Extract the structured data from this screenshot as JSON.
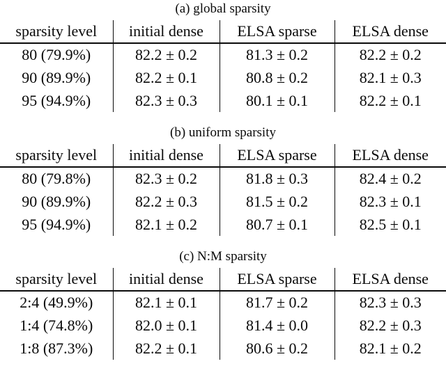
{
  "page": {
    "background_color": "#ffffff",
    "text_color": "#0a0a0a"
  },
  "tables": [
    {
      "caption": "(a) global sparsity",
      "headers": [
        "sparsity level",
        "initial dense",
        "ELSA sparse",
        "ELSA dense"
      ],
      "rows": [
        [
          "80 (79.9%)",
          "82.2 ± 0.2",
          "81.3 ± 0.2",
          "82.2 ± 0.2"
        ],
        [
          "90 (89.9%)",
          "82.2 ± 0.1",
          "80.8 ± 0.2",
          "82.1 ± 0.3"
        ],
        [
          "95 (94.9%)",
          "82.3 ± 0.3",
          "80.1 ± 0.1",
          "82.2 ± 0.1"
        ]
      ]
    },
    {
      "caption": "(b) uniform sparsity",
      "headers": [
        "sparsity level",
        "initial dense",
        "ELSA sparse",
        "ELSA dense"
      ],
      "rows": [
        [
          "80 (79.8%)",
          "82.3 ± 0.2",
          "81.8 ± 0.3",
          "82.4 ± 0.2"
        ],
        [
          "90 (89.9%)",
          "82.2 ± 0.3",
          "81.5 ± 0.2",
          "82.3 ± 0.1"
        ],
        [
          "95 (94.9%)",
          "82.1 ± 0.2",
          "80.7 ± 0.1",
          "82.5 ± 0.1"
        ]
      ]
    },
    {
      "caption": "(c) N:M sparsity",
      "headers": [
        "sparsity level",
        "initial dense",
        "ELSA sparse",
        "ELSA dense"
      ],
      "rows": [
        [
          "2:4 (49.9%)",
          "82.1 ± 0.1",
          "81.7 ± 0.2",
          "82.3 ± 0.3"
        ],
        [
          "1:4 (74.8%)",
          "82.0 ± 0.1",
          "81.4 ± 0.0",
          "82.2 ± 0.3"
        ],
        [
          "1:8 (87.3%)",
          "82.2 ± 0.1",
          "80.6 ± 0.2",
          "82.1 ± 0.2"
        ]
      ]
    }
  ]
}
